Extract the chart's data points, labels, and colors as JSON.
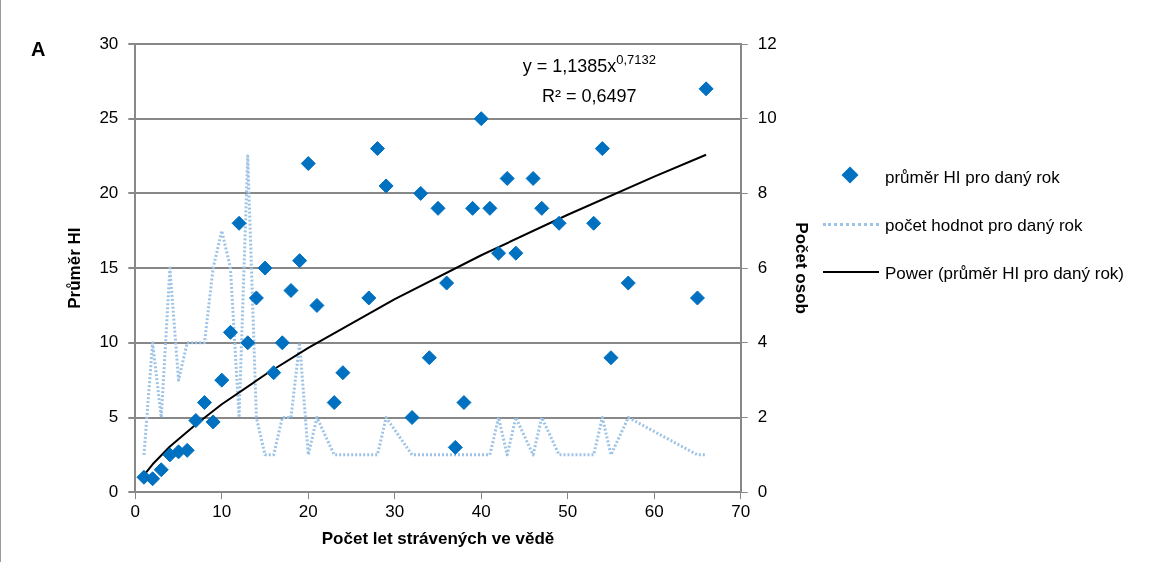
{
  "chart_data": {
    "type": "scatter",
    "xlabel": "Počet let strávených ve vědě",
    "ylabel": "Průměr HI",
    "y2label": "Počet osob",
    "xlim": [
      0,
      70
    ],
    "xticks": [
      0,
      10,
      20,
      30,
      40,
      50,
      60,
      70
    ],
    "ylim": [
      0,
      30
    ],
    "yticks": [
      0,
      5,
      10,
      15,
      20,
      25,
      30
    ],
    "y2lim": [
      0,
      12
    ],
    "y2ticks": [
      0,
      2,
      4,
      6,
      8,
      10,
      12
    ],
    "grid": "y",
    "legend": "right",
    "annotations": [
      "A",
      "y = 1,1385x$^{0,7132}$",
      "R² = 0,6497"
    ],
    "series": [
      {
        "name": "průměr HI pro daný rok",
        "marker": "diamond",
        "color": "#0070c0",
        "x": [
          1,
          2,
          3,
          4,
          5,
          6,
          7,
          8,
          9,
          10,
          11,
          12,
          13,
          14,
          15,
          16,
          17,
          18,
          19,
          20,
          21,
          23,
          24,
          27,
          28,
          29,
          32,
          33,
          34,
          35,
          36,
          37,
          38,
          39,
          40,
          41,
          42,
          43,
          44,
          46,
          47,
          49,
          53,
          54,
          55,
          57,
          65,
          66
        ],
        "values": [
          1,
          0.9,
          1.5,
          2.5,
          2.7,
          2.8,
          4.8,
          6,
          4.7,
          7.5,
          10.7,
          18,
          10,
          13,
          15,
          8,
          10,
          13.5,
          15.5,
          22,
          12.5,
          6,
          8,
          13,
          23,
          20.5,
          5,
          20,
          9,
          19,
          14,
          3,
          6,
          19,
          25,
          19,
          16,
          21,
          16,
          21,
          19,
          18,
          18,
          23,
          9,
          14,
          13,
          27
        ]
      },
      {
        "name": "počet hodnot pro daný rok",
        "type": "line",
        "axis": "y2",
        "marker": "none",
        "line_style": "dotted",
        "color": "#9dc3e6",
        "x": [
          1,
          2,
          3,
          4,
          5,
          6,
          7,
          8,
          9,
          10,
          11,
          12,
          13,
          14,
          15,
          16,
          17,
          18,
          19,
          20,
          21,
          23,
          24,
          27,
          28,
          29,
          32,
          33,
          34,
          35,
          36,
          37,
          38,
          39,
          40,
          41,
          42,
          43,
          44,
          46,
          47,
          49,
          53,
          54,
          55,
          57,
          65,
          66
        ],
        "values": [
          1,
          4,
          2,
          6,
          3,
          4,
          4,
          4,
          6,
          7,
          6,
          2,
          9,
          2,
          1,
          1,
          2,
          2,
          4,
          1,
          2,
          1,
          1,
          1,
          1,
          2,
          1,
          1,
          1,
          1,
          1,
          1,
          1,
          1,
          1,
          1,
          2,
          1,
          2,
          1,
          2,
          1,
          1,
          2,
          1,
          2,
          1,
          1
        ]
      },
      {
        "name": "Power (průměr HI pro daný rok)",
        "type": "line",
        "marker": "none",
        "line_style": "solid",
        "color": "#000000",
        "x": [
          1,
          2,
          4,
          7,
          10,
          15,
          20,
          30,
          40,
          50,
          60,
          66
        ],
        "values": [
          1.14,
          1.87,
          3.06,
          4.53,
          5.89,
          7.86,
          9.66,
          12.93,
          15.86,
          18.57,
          21.12,
          22.59
        ]
      }
    ]
  }
}
